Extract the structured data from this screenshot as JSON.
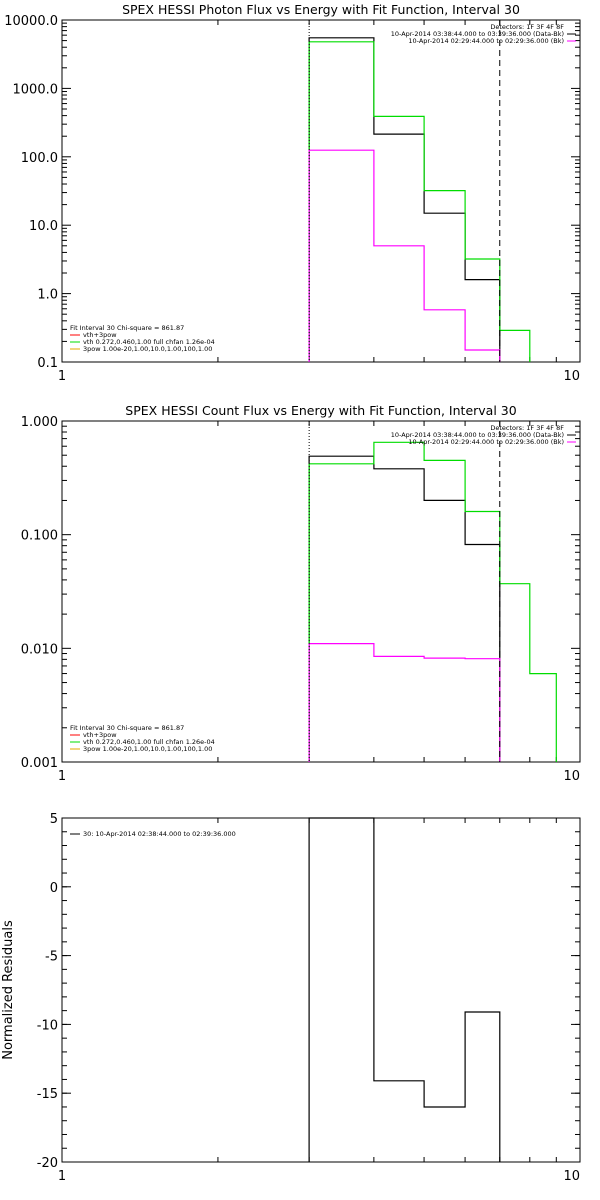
{
  "chart_data": [
    {
      "type": "line",
      "title": "SPEX HESSI Photon Flux vs Energy with Fit Function, Interval 30",
      "xscale": "log",
      "yscale": "log",
      "xlim": [
        1,
        10
      ],
      "ylim": [
        0.1,
        10000
      ],
      "xticks": [
        {
          "v": 1,
          "label": "1"
        },
        {
          "v": 10,
          "label": "10"
        }
      ],
      "yticks": [
        {
          "v": 0.1,
          "label": "0.1"
        },
        {
          "v": 1,
          "label": "1.0"
        },
        {
          "v": 10,
          "label": "10.0"
        },
        {
          "v": 100,
          "label": "100.0"
        },
        {
          "v": 1000,
          "label": "1000.0"
        },
        {
          "v": 10000,
          "label": "10000.0"
        }
      ],
      "vlines": [
        {
          "x": 3,
          "style": "dotted",
          "color": "#000000"
        },
        {
          "x": 7,
          "style": "dashed",
          "color": "#000000"
        }
      ],
      "edges": [
        3,
        4,
        5,
        6,
        7,
        8
      ],
      "series": [
        {
          "color": "#000000",
          "values": [
            5500,
            215,
            15,
            1.6,
            null
          ]
        },
        {
          "color": "#00dd00",
          "values": [
            4800,
            390,
            32,
            3.2,
            0.29
          ]
        },
        {
          "color": "#ff00ff",
          "values": [
            125,
            5,
            0.58,
            0.15,
            null
          ]
        }
      ],
      "legend_top_right": [
        {
          "text": "Detectors: 1F 3F 4F 8F",
          "color": null
        },
        {
          "text": "10-Apr-2014 03:38:44.000 to 03:39:36.000 (Data-Bk)",
          "color": "#000000"
        },
        {
          "text": "10-Apr-2014 02:29:44.000 to 02:29:36.000 (Bk)",
          "color": "#ff00ff"
        }
      ],
      "legend_bottom_left": [
        {
          "text": "Fit Interval 30   Chi-square = 861.87",
          "color": null
        },
        {
          "text": "vth+3pow",
          "color": "#ff0000"
        },
        {
          "text": "vth 0.272,0.460,1.00  full chfan 1.26e-04",
          "color": "#00dd00"
        },
        {
          "text": "3pow 1.00e-20,1.00,10.0,1.00,100,1.00",
          "color": "#e6a800"
        }
      ]
    },
    {
      "type": "line",
      "title": "SPEX HESSI Count Flux vs Energy with Fit Function, Interval 30",
      "xscale": "log",
      "yscale": "log",
      "xlim": [
        1,
        10
      ],
      "ylim": [
        0.001,
        1
      ],
      "xticks": [
        {
          "v": 1,
          "label": "1"
        },
        {
          "v": 10,
          "label": "10"
        }
      ],
      "yticks": [
        {
          "v": 0.001,
          "label": "0.001"
        },
        {
          "v": 0.01,
          "label": "0.010"
        },
        {
          "v": 0.1,
          "label": "0.100"
        },
        {
          "v": 1,
          "label": "1.000"
        }
      ],
      "vlines": [
        {
          "x": 3,
          "style": "dotted",
          "color": "#000000"
        },
        {
          "x": 7,
          "style": "dashed",
          "color": "#000000"
        }
      ],
      "edges": [
        3,
        4,
        5,
        6,
        7,
        8,
        9
      ],
      "series": [
        {
          "color": "#000000",
          "values": [
            0.49,
            0.38,
            0.2,
            0.082,
            null,
            null
          ]
        },
        {
          "color": "#00dd00",
          "values": [
            0.42,
            0.65,
            0.45,
            0.16,
            0.037,
            0.006
          ]
        },
        {
          "color": "#ff00ff",
          "values": [
            0.011,
            0.0085,
            0.0082,
            0.0081,
            null,
            null
          ]
        }
      ],
      "legend_top_right": [
        {
          "text": "Detectors: 1F 3F 4F 8F",
          "color": null
        },
        {
          "text": "10-Apr-2014 03:38:44.000 to 03:39:36.000 (Data-Bk)",
          "color": "#000000"
        },
        {
          "text": "10-Apr-2014 02:29:44.000 to 02:29:36.000 (Bk)",
          "color": "#ff00ff"
        }
      ],
      "legend_bottom_left": [
        {
          "text": "Fit Interval 30   Chi-square = 861.87",
          "color": null
        },
        {
          "text": "vth+3pow",
          "color": "#ff0000"
        },
        {
          "text": "vth 0.272,0.460,1.00  full chfan 1.26e-04",
          "color": "#00dd00"
        },
        {
          "text": "3pow 1.00e-20,1.00,10.0,1.00,100,1.00",
          "color": "#e6a800"
        }
      ]
    },
    {
      "type": "line",
      "title": "",
      "ylabel": "Normalized Residuals",
      "xscale": "log",
      "yscale": "linear",
      "xlim": [
        1,
        10
      ],
      "ylim": [
        -20,
        5
      ],
      "xticks": [
        {
          "v": 1,
          "label": "1"
        },
        {
          "v": 10,
          "label": "10"
        }
      ],
      "yticks": [
        {
          "v": -20,
          "label": "-20"
        },
        {
          "v": -15,
          "label": "-15"
        },
        {
          "v": -10,
          "label": "-10"
        },
        {
          "v": -5,
          "label": "-5"
        },
        {
          "v": 0,
          "label": "0"
        },
        {
          "v": 5,
          "label": "5"
        }
      ],
      "edges": [
        3,
        4,
        5,
        6,
        7
      ],
      "series": [
        {
          "color": "#000000",
          "values": [
            5,
            -14.1,
            -16,
            -9.1
          ]
        }
      ],
      "legend_top_left": [
        {
          "text": "30: 10-Apr-2014 02:38:44.000 to 02:39:36.000",
          "color": "#000000"
        }
      ]
    }
  ]
}
